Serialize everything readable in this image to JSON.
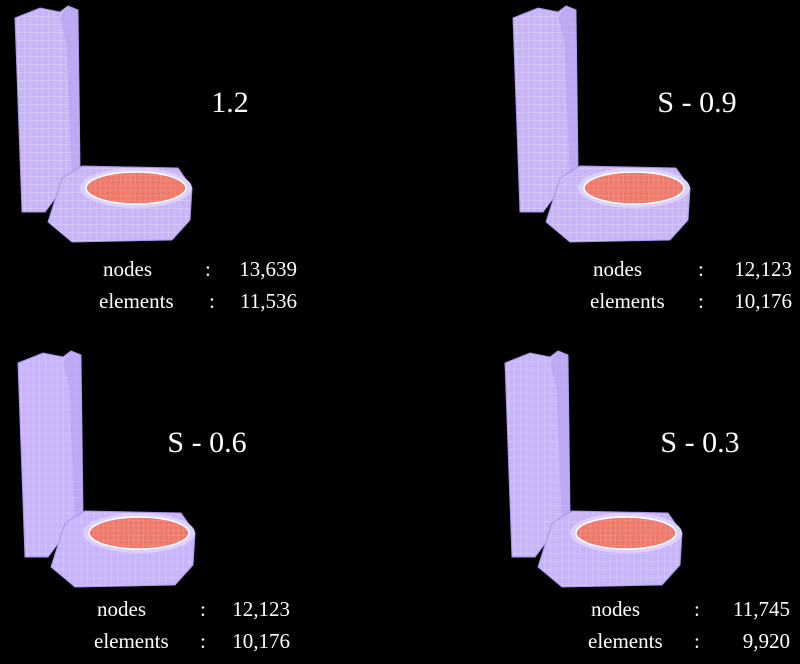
{
  "separator": ":",
  "panels": [
    {
      "title": "1.2",
      "nodes_label": "nodes",
      "nodes_value": "13,639",
      "elements_label": "elements",
      "elements_value": "11,536"
    },
    {
      "title": "S - 0.9",
      "nodes_label": "nodes",
      "nodes_value": "12,123",
      "elements_label": "elements",
      "elements_value": "10,176"
    },
    {
      "title": "S - 0.6",
      "nodes_label": "nodes",
      "nodes_value": "12,123",
      "elements_label": "elements",
      "elements_value": "10,176"
    },
    {
      "title": "S - 0.3",
      "nodes_label": "nodes",
      "nodes_value": "11,745",
      "elements_label": "elements",
      "elements_value": "9,920"
    }
  ]
}
